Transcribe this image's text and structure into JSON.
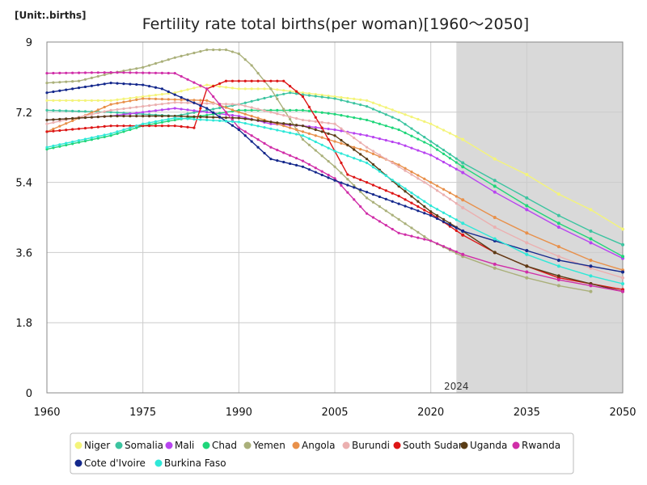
{
  "chart_data": {
    "type": "line",
    "title": "Fertility rate total births(per woman)[1960～2050]",
    "unit_label": "[Unit:.births]",
    "xlim": [
      1960,
      2050
    ],
    "ylim": [
      0,
      9
    ],
    "x_ticks": [
      1960,
      1975,
      1990,
      2005,
      2020,
      2035,
      2050
    ],
    "y_ticks": [
      0,
      1.8,
      3.6,
      5.4,
      7.2,
      9
    ],
    "y_tick_labels": [
      "0",
      "1.8",
      "3.6",
      "5.4",
      "7.2",
      "9"
    ],
    "forecast_start": 2024,
    "forecast_label": "2024",
    "grid": true,
    "legend_position": "bottom",
    "series": [
      {
        "name": "Niger",
        "color": "#f4f47a",
        "points": [
          [
            1960,
            7.5
          ],
          [
            1970,
            7.5
          ],
          [
            1980,
            7.7
          ],
          [
            1985,
            7.9
          ],
          [
            1990,
            7.8
          ],
          [
            1995,
            7.8
          ],
          [
            2000,
            7.7
          ],
          [
            2005,
            7.6
          ],
          [
            2010,
            7.5
          ],
          [
            2015,
            7.2
          ],
          [
            2020,
            6.9
          ],
          [
            2025,
            6.5
          ],
          [
            2030,
            6.0
          ],
          [
            2035,
            5.6
          ],
          [
            2040,
            5.1
          ],
          [
            2045,
            4.7
          ],
          [
            2050,
            4.2
          ]
        ]
      },
      {
        "name": "Somalia",
        "color": "#3cc4a0",
        "points": [
          [
            1960,
            7.25
          ],
          [
            1970,
            7.2
          ],
          [
            1980,
            7.1
          ],
          [
            1990,
            7.4
          ],
          [
            1995,
            7.6
          ],
          [
            1998,
            7.7
          ],
          [
            2000,
            7.65
          ],
          [
            2005,
            7.55
          ],
          [
            2010,
            7.35
          ],
          [
            2015,
            7.0
          ],
          [
            2020,
            6.45
          ],
          [
            2025,
            5.9
          ],
          [
            2030,
            5.45
          ],
          [
            2035,
            5.0
          ],
          [
            2040,
            4.55
          ],
          [
            2045,
            4.15
          ],
          [
            2050,
            3.8
          ]
        ]
      },
      {
        "name": "Mali",
        "color": "#b844f0",
        "points": [
          [
            1960,
            7.0
          ],
          [
            1970,
            7.1
          ],
          [
            1980,
            7.3
          ],
          [
            1990,
            7.1
          ],
          [
            1995,
            6.9
          ],
          [
            2000,
            6.85
          ],
          [
            2005,
            6.75
          ],
          [
            2010,
            6.6
          ],
          [
            2015,
            6.4
          ],
          [
            2020,
            6.1
          ],
          [
            2025,
            5.65
          ],
          [
            2030,
            5.15
          ],
          [
            2035,
            4.7
          ],
          [
            2040,
            4.25
          ],
          [
            2045,
            3.85
          ],
          [
            2050,
            3.45
          ]
        ]
      },
      {
        "name": "Chad",
        "color": "#1fd67a",
        "points": [
          [
            1960,
            6.25
          ],
          [
            1970,
            6.6
          ],
          [
            1975,
            6.85
          ],
          [
            1980,
            7.0
          ],
          [
            1990,
            7.25
          ],
          [
            2000,
            7.25
          ],
          [
            2005,
            7.15
          ],
          [
            2010,
            7.0
          ],
          [
            2015,
            6.75
          ],
          [
            2020,
            6.35
          ],
          [
            2025,
            5.8
          ],
          [
            2030,
            5.3
          ],
          [
            2035,
            4.8
          ],
          [
            2040,
            4.35
          ],
          [
            2045,
            3.95
          ],
          [
            2050,
            3.5
          ]
        ]
      },
      {
        "name": "Yemen",
        "color": "#aab07a",
        "points": [
          [
            1960,
            7.95
          ],
          [
            1965,
            8.0
          ],
          [
            1970,
            8.2
          ],
          [
            1975,
            8.35
          ],
          [
            1980,
            8.6
          ],
          [
            1985,
            8.8
          ],
          [
            1988,
            8.8
          ],
          [
            1990,
            8.7
          ],
          [
            1992,
            8.4
          ],
          [
            1995,
            7.8
          ],
          [
            2000,
            6.5
          ],
          [
            2005,
            5.8
          ],
          [
            2010,
            5.0
          ],
          [
            2015,
            4.45
          ],
          [
            2020,
            3.9
          ],
          [
            2025,
            3.5
          ],
          [
            2030,
            3.2
          ],
          [
            2035,
            2.95
          ],
          [
            2040,
            2.75
          ],
          [
            2045,
            2.6
          ]
        ]
      },
      {
        "name": "Angola",
        "color": "#e8904a",
        "points": [
          [
            1960,
            6.7
          ],
          [
            1970,
            7.4
          ],
          [
            1975,
            7.55
          ],
          [
            1985,
            7.5
          ],
          [
            1990,
            7.2
          ],
          [
            2000,
            6.7
          ],
          [
            2005,
            6.45
          ],
          [
            2010,
            6.2
          ],
          [
            2015,
            5.85
          ],
          [
            2020,
            5.4
          ],
          [
            2025,
            4.95
          ],
          [
            2030,
            4.5
          ],
          [
            2035,
            4.1
          ],
          [
            2040,
            3.75
          ],
          [
            2045,
            3.4
          ],
          [
            2050,
            3.15
          ]
        ]
      },
      {
        "name": "Burundi",
        "color": "#ebb0b0",
        "points": [
          [
            1960,
            6.9
          ],
          [
            1970,
            7.25
          ],
          [
            1980,
            7.45
          ],
          [
            1990,
            7.4
          ],
          [
            2000,
            7.0
          ],
          [
            2005,
            6.9
          ],
          [
            2010,
            6.3
          ],
          [
            2015,
            5.8
          ],
          [
            2020,
            5.3
          ],
          [
            2025,
            4.75
          ],
          [
            2030,
            4.25
          ],
          [
            2035,
            3.85
          ],
          [
            2040,
            3.5
          ],
          [
            2045,
            3.2
          ],
          [
            2050,
            2.95
          ]
        ]
      },
      {
        "name": "South Sudan",
        "color": "#dd1616",
        "points": [
          [
            1960,
            6.7
          ],
          [
            1970,
            6.85
          ],
          [
            1980,
            6.85
          ],
          [
            1983,
            6.8
          ],
          [
            1985,
            7.8
          ],
          [
            1988,
            8.0
          ],
          [
            1990,
            8.0
          ],
          [
            1997,
            8.0
          ],
          [
            2000,
            7.6
          ],
          [
            2003,
            6.8
          ],
          [
            2005,
            6.2
          ],
          [
            2007,
            5.6
          ],
          [
            2010,
            5.4
          ],
          [
            2015,
            5.05
          ],
          [
            2020,
            4.6
          ],
          [
            2025,
            4.05
          ],
          [
            2030,
            3.6
          ],
          [
            2035,
            3.25
          ],
          [
            2040,
            2.95
          ],
          [
            2045,
            2.8
          ],
          [
            2050,
            2.65
          ]
        ]
      },
      {
        "name": "Uganda",
        "color": "#5a3d16",
        "points": [
          [
            1960,
            7.0
          ],
          [
            1970,
            7.1
          ],
          [
            1980,
            7.1
          ],
          [
            1990,
            7.05
          ],
          [
            2000,
            6.85
          ],
          [
            2005,
            6.6
          ],
          [
            2010,
            6.0
          ],
          [
            2015,
            5.3
          ],
          [
            2020,
            4.65
          ],
          [
            2025,
            4.15
          ],
          [
            2030,
            3.6
          ],
          [
            2035,
            3.25
          ],
          [
            2040,
            3.0
          ],
          [
            2045,
            2.8
          ],
          [
            2050,
            2.6
          ]
        ]
      },
      {
        "name": "Rwanda",
        "color": "#d02ea8",
        "points": [
          [
            1960,
            8.2
          ],
          [
            1970,
            8.22
          ],
          [
            1980,
            8.2
          ],
          [
            1985,
            7.8
          ],
          [
            1990,
            6.8
          ],
          [
            1995,
            6.3
          ],
          [
            2000,
            5.95
          ],
          [
            2005,
            5.5
          ],
          [
            2010,
            4.6
          ],
          [
            2015,
            4.1
          ],
          [
            2020,
            3.9
          ],
          [
            2025,
            3.55
          ],
          [
            2030,
            3.3
          ],
          [
            2035,
            3.1
          ],
          [
            2040,
            2.9
          ],
          [
            2045,
            2.75
          ],
          [
            2050,
            2.6
          ]
        ]
      },
      {
        "name": "Cote d'Ivoire",
        "color": "#14288c",
        "points": [
          [
            1960,
            7.7
          ],
          [
            1970,
            7.95
          ],
          [
            1975,
            7.9
          ],
          [
            1978,
            7.8
          ],
          [
            1980,
            7.65
          ],
          [
            1985,
            7.3
          ],
          [
            1990,
            6.75
          ],
          [
            1995,
            6.0
          ],
          [
            2000,
            5.8
          ],
          [
            2005,
            5.45
          ],
          [
            2010,
            5.15
          ],
          [
            2015,
            4.85
          ],
          [
            2020,
            4.55
          ],
          [
            2025,
            4.15
          ],
          [
            2030,
            3.9
          ],
          [
            2035,
            3.65
          ],
          [
            2040,
            3.4
          ],
          [
            2045,
            3.25
          ],
          [
            2050,
            3.1
          ]
        ]
      },
      {
        "name": "Burkina Faso",
        "color": "#2fe8d8",
        "points": [
          [
            1960,
            6.3
          ],
          [
            1970,
            6.65
          ],
          [
            1975,
            6.9
          ],
          [
            1980,
            7.05
          ],
          [
            1990,
            6.95
          ],
          [
            2000,
            6.6
          ],
          [
            2005,
            6.2
          ],
          [
            2010,
            5.9
          ],
          [
            2015,
            5.35
          ],
          [
            2020,
            4.8
          ],
          [
            2025,
            4.35
          ],
          [
            2030,
            3.95
          ],
          [
            2035,
            3.55
          ],
          [
            2040,
            3.25
          ],
          [
            2045,
            3.0
          ],
          [
            2050,
            2.8
          ]
        ]
      }
    ]
  }
}
